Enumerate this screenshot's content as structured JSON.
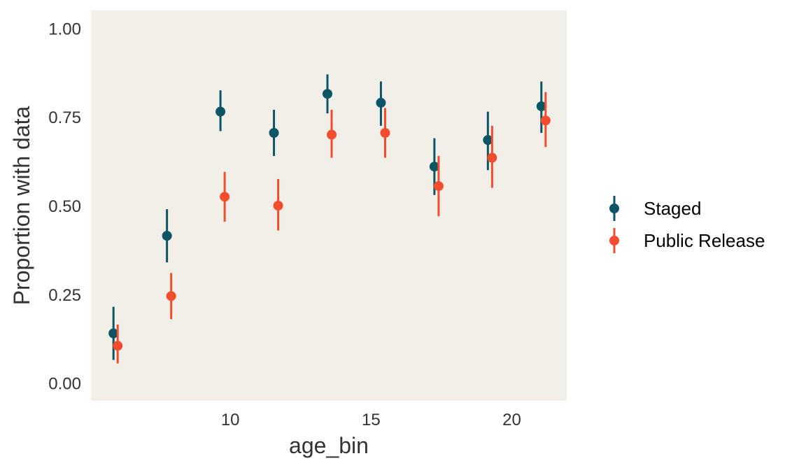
{
  "chart_data": {
    "type": "scatter",
    "subtype": "point-range (dodged)",
    "xlabel": "age_bin",
    "ylabel": "Proportion with data",
    "xlim": [
      5.05,
      21.95
    ],
    "ylim": [
      -0.05,
      1.05
    ],
    "x_ticks": [
      10,
      15,
      20
    ],
    "x_tick_labels": [
      "10",
      "15",
      "20"
    ],
    "y_ticks": [
      0,
      0.25,
      0.5,
      0.75,
      1
    ],
    "y_tick_labels": [
      "0.00",
      "0.25",
      "0.50",
      "0.75",
      "1.00"
    ],
    "grid": false,
    "legend_position": "right",
    "panel_background": "#F2EFE9",
    "series": [
      {
        "name": "Staged",
        "color": "#0B5566",
        "points": [
          {
            "x": 5.85,
            "y": 0.14,
            "ymin": 0.065,
            "ymax": 0.215
          },
          {
            "x": 7.75,
            "y": 0.415,
            "ymin": 0.34,
            "ymax": 0.49
          },
          {
            "x": 9.65,
            "y": 0.765,
            "ymin": 0.71,
            "ymax": 0.825
          },
          {
            "x": 11.55,
            "y": 0.705,
            "ymin": 0.64,
            "ymax": 0.77
          },
          {
            "x": 13.45,
            "y": 0.815,
            "ymin": 0.76,
            "ymax": 0.87
          },
          {
            "x": 15.35,
            "y": 0.79,
            "ymin": 0.725,
            "ymax": 0.85
          },
          {
            "x": 17.25,
            "y": 0.61,
            "ymin": 0.53,
            "ymax": 0.69
          },
          {
            "x": 19.15,
            "y": 0.685,
            "ymin": 0.6,
            "ymax": 0.765
          },
          {
            "x": 21.05,
            "y": 0.78,
            "ymin": 0.705,
            "ymax": 0.85
          }
        ]
      },
      {
        "name": "Public Release",
        "color": "#F24E2E",
        "points": [
          {
            "x": 6.0,
            "y": 0.105,
            "ymin": 0.055,
            "ymax": 0.165
          },
          {
            "x": 7.9,
            "y": 0.245,
            "ymin": 0.18,
            "ymax": 0.31
          },
          {
            "x": 9.8,
            "y": 0.525,
            "ymin": 0.455,
            "ymax": 0.595
          },
          {
            "x": 11.7,
            "y": 0.5,
            "ymin": 0.43,
            "ymax": 0.575
          },
          {
            "x": 13.6,
            "y": 0.7,
            "ymin": 0.635,
            "ymax": 0.77
          },
          {
            "x": 15.5,
            "y": 0.705,
            "ymin": 0.635,
            "ymax": 0.775
          },
          {
            "x": 17.4,
            "y": 0.555,
            "ymin": 0.47,
            "ymax": 0.64
          },
          {
            "x": 19.3,
            "y": 0.635,
            "ymin": 0.55,
            "ymax": 0.725
          },
          {
            "x": 21.2,
            "y": 0.74,
            "ymin": 0.665,
            "ymax": 0.82
          }
        ]
      }
    ]
  }
}
